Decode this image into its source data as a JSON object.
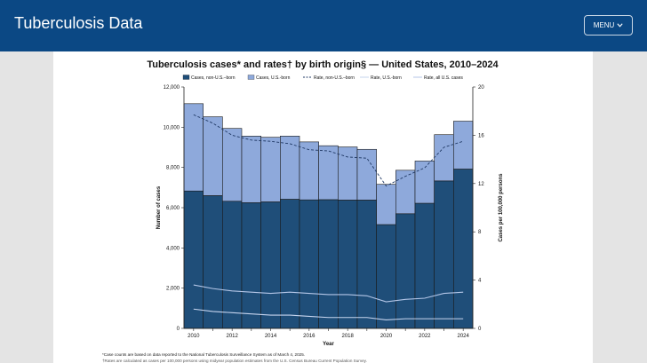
{
  "header": {
    "app_title": "Tuberculosis Data",
    "menu_label": "MENU",
    "bg_color": "#0b4884"
  },
  "chart_data": {
    "type": "bar",
    "stacked": true,
    "title": "Tuberculosis cases* and rates† by birth origin§ — United States, 2010–2024",
    "xlabel": "Year",
    "ylabel": "Number of cases",
    "y2label": "Cases per 100,000 persons",
    "ylim": [
      0,
      12000
    ],
    "y2lim": [
      0,
      20
    ],
    "yticks": [
      "0",
      "2,000",
      "4,000",
      "6,000",
      "8,000",
      "10,000",
      "12,000"
    ],
    "y2ticks": [
      "0",
      "4",
      "8",
      "12",
      "16",
      "20"
    ],
    "categories": [
      "2010",
      "2011",
      "2012",
      "2013",
      "2014",
      "2015",
      "2016",
      "2017",
      "2018",
      "2019",
      "2020",
      "2021",
      "2022",
      "2023",
      "2024"
    ],
    "xtick_labels": [
      "2010",
      "2012",
      "2014",
      "2016",
      "2018",
      "2020",
      "2022",
      "2024"
    ],
    "legend_position": "top",
    "series": [
      {
        "name": "Cases, non-U.S.–born",
        "kind": "bar",
        "color": "#1f4e79",
        "values": [
          6830,
          6600,
          6320,
          6250,
          6290,
          6420,
          6390,
          6400,
          6380,
          6380,
          5160,
          5700,
          6220,
          7330,
          7920
        ]
      },
      {
        "name": "Cases, U.S.-born",
        "kind": "bar",
        "color": "#8ea9db",
        "values": [
          4340,
          3920,
          3620,
          3310,
          3210,
          3140,
          2880,
          2680,
          2640,
          2520,
          2000,
          2160,
          2100,
          2300,
          2380
        ]
      },
      {
        "name": "Rate, non-U.S.–born",
        "kind": "line",
        "style": "dashed",
        "color": "#1f3864",
        "values": [
          17.7,
          17.0,
          16.0,
          15.6,
          15.5,
          15.3,
          14.8,
          14.7,
          14.2,
          14.1,
          11.8,
          12.6,
          13.3,
          15.0,
          15.5
        ]
      },
      {
        "name": "Rate, U.S.-born",
        "kind": "line",
        "style": "solid",
        "color": "#c6d4ee",
        "values": [
          1.6,
          1.4,
          1.3,
          1.2,
          1.1,
          1.1,
          1.0,
          0.9,
          0.9,
          0.9,
          0.7,
          0.8,
          0.8,
          0.8,
          0.8
        ]
      },
      {
        "name": "Rate, all U.S. cases",
        "kind": "line",
        "style": "solid",
        "color": "#b4c6e7",
        "values": [
          3.6,
          3.3,
          3.1,
          3.0,
          2.9,
          3.0,
          2.9,
          2.8,
          2.8,
          2.7,
          2.2,
          2.4,
          2.5,
          2.9,
          3.0
        ]
      }
    ]
  },
  "footnotes": {
    "note1": "*Case counts are based on data reported to the National Tuberculosis Surveillance System as of March 4, 2025.",
    "note2": "†Rates are calculated as cases per 100,000 persons using midyear population estimates from the U.S. Census Bureau Current Population Survey."
  }
}
